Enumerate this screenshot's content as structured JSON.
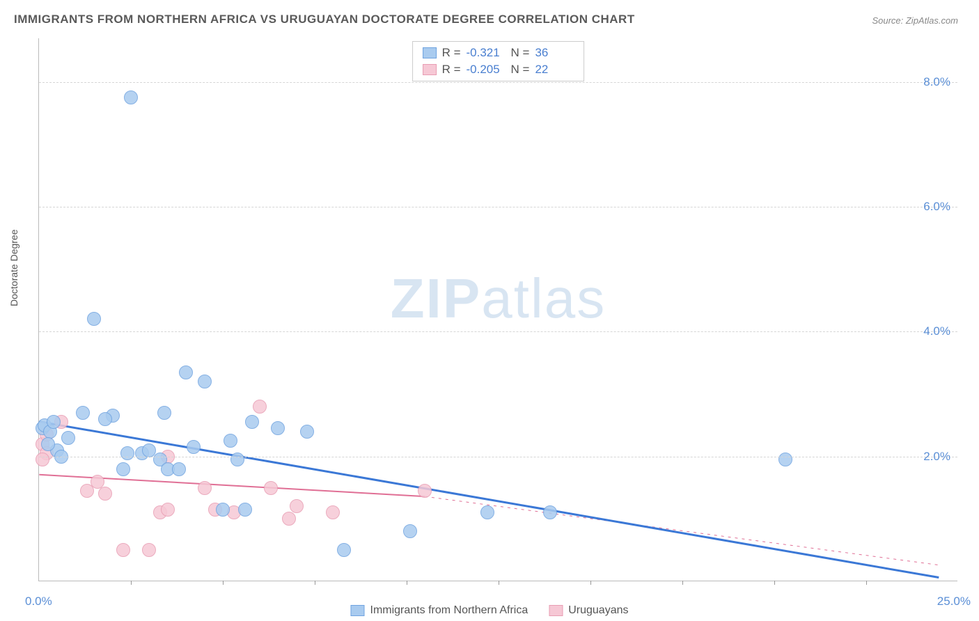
{
  "title": "IMMIGRANTS FROM NORTHERN AFRICA VS URUGUAYAN DOCTORATE DEGREE CORRELATION CHART",
  "source": "Source: ZipAtlas.com",
  "watermark": {
    "zip": "ZIP",
    "atlas": "atlas"
  },
  "ylabel": "Doctorate Degree",
  "chart": {
    "type": "scatter",
    "xlim": [
      0,
      25
    ],
    "ylim": [
      0,
      8.7
    ],
    "x_tick_labels": {
      "min": "0.0%",
      "max": "25.0%"
    },
    "x_minor_ticks": [
      2.5,
      5.0,
      7.5,
      10.0,
      12.5,
      15.0,
      17.5,
      20.0,
      22.5
    ],
    "y_gridlines": [
      2.0,
      4.0,
      6.0,
      8.0
    ],
    "y_tick_labels": [
      "2.0%",
      "4.0%",
      "6.0%",
      "8.0%"
    ],
    "grid_color": "#d5d5d5",
    "axis_color": "#bbbbbb",
    "background_color": "#ffffff",
    "tick_label_color": "#5b8fd6",
    "marker_radius": 10,
    "marker_stroke_width": 1.5,
    "marker_fill_opacity": 0.35
  },
  "series": {
    "blue": {
      "label": "Immigrants from Northern Africa",
      "color_stroke": "#6fa3e0",
      "color_fill": "#a9cbef",
      "R": "-0.321",
      "N": "36",
      "trend": {
        "color": "#3b78d6",
        "width": 3,
        "solid_x1": 0.0,
        "solid_y1": 2.55,
        "solid_x2": 24.5,
        "solid_y2": 0.05
      },
      "data": [
        [
          0.1,
          2.45
        ],
        [
          0.15,
          2.5
        ],
        [
          0.3,
          2.4
        ],
        [
          0.4,
          2.55
        ],
        [
          0.5,
          2.1
        ],
        [
          1.2,
          2.7
        ],
        [
          1.5,
          4.2
        ],
        [
          2.5,
          7.75
        ],
        [
          2.8,
          2.05
        ],
        [
          2.0,
          2.65
        ],
        [
          3.4,
          2.7
        ],
        [
          2.3,
          1.8
        ],
        [
          3.3,
          1.95
        ],
        [
          3.5,
          1.8
        ],
        [
          3.0,
          2.1
        ],
        [
          4.0,
          3.35
        ],
        [
          4.5,
          3.2
        ],
        [
          5.2,
          2.25
        ],
        [
          5.0,
          1.15
        ],
        [
          5.6,
          1.15
        ],
        [
          5.8,
          2.55
        ],
        [
          5.4,
          1.95
        ],
        [
          6.5,
          2.45
        ],
        [
          7.3,
          2.4
        ],
        [
          8.3,
          0.5
        ],
        [
          10.1,
          0.8
        ],
        [
          12.2,
          1.1
        ],
        [
          13.9,
          1.1
        ],
        [
          20.3,
          1.95
        ],
        [
          0.8,
          2.3
        ],
        [
          1.8,
          2.6
        ],
        [
          2.4,
          2.05
        ],
        [
          4.2,
          2.15
        ],
        [
          3.8,
          1.8
        ],
        [
          0.6,
          2.0
        ],
        [
          0.25,
          2.2
        ]
      ]
    },
    "pink": {
      "label": "Uruguayans",
      "color_stroke": "#e89db3",
      "color_fill": "#f6c8d5",
      "R": "-0.205",
      "N": "22",
      "trend": {
        "color": "#e06f95",
        "width": 2,
        "solid_x1": 0.0,
        "solid_y1": 1.7,
        "solid_x2": 10.5,
        "solid_y2": 1.35,
        "dash_x2": 24.5,
        "dash_y2": 0.25
      },
      "data": [
        [
          0.1,
          2.2
        ],
        [
          0.2,
          2.35
        ],
        [
          0.2,
          2.05
        ],
        [
          0.1,
          1.95
        ],
        [
          0.6,
          2.55
        ],
        [
          1.3,
          1.45
        ],
        [
          1.6,
          1.6
        ],
        [
          1.8,
          1.4
        ],
        [
          2.3,
          0.5
        ],
        [
          3.0,
          0.5
        ],
        [
          3.3,
          1.1
        ],
        [
          3.5,
          2.0
        ],
        [
          3.5,
          1.15
        ],
        [
          4.5,
          1.5
        ],
        [
          4.8,
          1.15
        ],
        [
          5.3,
          1.1
        ],
        [
          6.0,
          2.8
        ],
        [
          6.3,
          1.5
        ],
        [
          6.8,
          1.0
        ],
        [
          7.0,
          1.2
        ],
        [
          8.0,
          1.1
        ],
        [
          10.5,
          1.45
        ]
      ]
    }
  },
  "legend_top": {
    "r_label": "R =",
    "n_label": "N ="
  },
  "legend_bottom": {
    "items": [
      "blue",
      "pink"
    ]
  }
}
